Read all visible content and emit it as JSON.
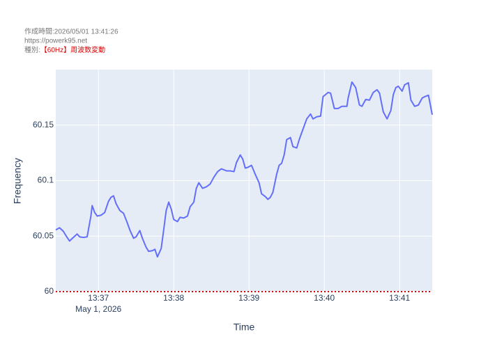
{
  "chart_data": {
    "type": "line",
    "header": [
      "作成時間:2026/05/01 13:41:26",
      "https://powerk95.net"
    ],
    "kind_label": "種別:",
    "kind": "【60Hz】周波数変動",
    "kind_color": "#e00000",
    "x_label": "Time",
    "y_label": "Frequency",
    "x_date_label": "May 1, 2026",
    "x": [
      "2026-05-01T13:36:26",
      "2026-05-01T13:36:29",
      "2026-05-01T13:36:32",
      "2026-05-01T13:36:34",
      "2026-05-01T13:36:37",
      "2026-05-01T13:36:40",
      "2026-05-01T13:36:43",
      "2026-05-01T13:36:45",
      "2026-05-01T13:36:48",
      "2026-05-01T13:36:51",
      "2026-05-01T13:36:54",
      "2026-05-01T13:36:55",
      "2026-05-01T13:36:57",
      "2026-05-01T13:36:59",
      "2026-05-01T13:37:02",
      "2026-05-01T13:37:05",
      "2026-05-01T13:37:08",
      "2026-05-01T13:37:10",
      "2026-05-01T13:37:12",
      "2026-05-01T13:37:14",
      "2026-05-01T13:37:17",
      "2026-05-01T13:37:20",
      "2026-05-01T13:37:23",
      "2026-05-01T13:37:25",
      "2026-05-01T13:37:28",
      "2026-05-01T13:37:30",
      "2026-05-01T13:37:33",
      "2026-05-01T13:37:35",
      "2026-05-01T13:37:38",
      "2026-05-01T13:37:40",
      "2026-05-01T13:37:43",
      "2026-05-01T13:37:45",
      "2026-05-01T13:37:47",
      "2026-05-01T13:37:50",
      "2026-05-01T13:37:52",
      "2026-05-01T13:37:54",
      "2026-05-01T13:37:56",
      "2026-05-01T13:37:58",
      "2026-05-01T13:38:00",
      "2026-05-01T13:38:03",
      "2026-05-01T13:38:05",
      "2026-05-01T13:38:08",
      "2026-05-01T13:38:11",
      "2026-05-01T13:38:13",
      "2026-05-01T13:38:16",
      "2026-05-01T13:38:18",
      "2026-05-01T13:38:20",
      "2026-05-01T13:38:23",
      "2026-05-01T13:38:26",
      "2026-05-01T13:38:29",
      "2026-05-01T13:38:32",
      "2026-05-01T13:38:35",
      "2026-05-01T13:38:38",
      "2026-05-01T13:38:42",
      "2026-05-01T13:38:45",
      "2026-05-01T13:38:48",
      "2026-05-01T13:38:50",
      "2026-05-01T13:38:53",
      "2026-05-01T13:38:55",
      "2026-05-01T13:38:57",
      "2026-05-01T13:38:59",
      "2026-05-01T13:39:02",
      "2026-05-01T13:39:05",
      "2026-05-01T13:39:08",
      "2026-05-01T13:39:10",
      "2026-05-01T13:39:13",
      "2026-05-01T13:39:15",
      "2026-05-01T13:39:17",
      "2026-05-01T13:39:19",
      "2026-05-01T13:39:22",
      "2026-05-01T13:39:24",
      "2026-05-01T13:39:26",
      "2026-05-01T13:39:28",
      "2026-05-01T13:39:30",
      "2026-05-01T13:39:33",
      "2026-05-01T13:39:35",
      "2026-05-01T13:39:38",
      "2026-05-01T13:39:40",
      "2026-05-01T13:39:43",
      "2026-05-01T13:39:46",
      "2026-05-01T13:39:49",
      "2026-05-01T13:39:51",
      "2026-05-01T13:39:54",
      "2026-05-01T13:39:57",
      "2026-05-01T13:39:59",
      "2026-05-01T13:40:03",
      "2026-05-01T13:40:05",
      "2026-05-01T13:40:08",
      "2026-05-01T13:40:11",
      "2026-05-01T13:40:14",
      "2026-05-01T13:40:18",
      "2026-05-01T13:40:19",
      "2026-05-01T13:40:22",
      "2026-05-01T13:40:25",
      "2026-05-01T13:40:28",
      "2026-05-01T13:40:30",
      "2026-05-01T13:40:33",
      "2026-05-01T13:40:36",
      "2026-05-01T13:40:39",
      "2026-05-01T13:40:42",
      "2026-05-01T13:40:44",
      "2026-05-01T13:40:47",
      "2026-05-01T13:40:50",
      "2026-05-01T13:40:53",
      "2026-05-01T13:40:55",
      "2026-05-01T13:40:57",
      "2026-05-01T13:40:59",
      "2026-05-01T13:41:02",
      "2026-05-01T13:41:04",
      "2026-05-01T13:41:07",
      "2026-05-01T13:41:09",
      "2026-05-01T13:41:12",
      "2026-05-01T13:41:15",
      "2026-05-01T13:41:18",
      "2026-05-01T13:41:20",
      "2026-05-01T13:41:23",
      "2026-05-01T13:41:26"
    ],
    "series": [
      {
        "name": "Frequency",
        "color": "#636efa",
        "values": [
          60.0556,
          60.0575,
          60.0544,
          60.0506,
          60.0456,
          60.0488,
          60.0519,
          60.0494,
          60.0488,
          60.0494,
          60.0681,
          60.0775,
          60.0713,
          60.0681,
          60.0688,
          60.0713,
          60.0813,
          60.085,
          60.0863,
          60.0794,
          60.0731,
          60.0706,
          60.0619,
          60.0556,
          60.0481,
          60.0494,
          60.055,
          60.0481,
          60.04,
          60.0363,
          60.0369,
          60.0381,
          60.0313,
          60.0388,
          60.0556,
          60.0731,
          60.0806,
          60.0744,
          60.065,
          60.0631,
          60.0669,
          60.0663,
          60.0681,
          60.0763,
          60.0806,
          60.0931,
          60.0981,
          60.0931,
          60.0944,
          60.0969,
          60.1031,
          60.1081,
          60.1106,
          60.1088,
          60.1088,
          60.1081,
          60.1163,
          60.1231,
          60.1194,
          60.1113,
          60.1119,
          60.1138,
          60.1056,
          60.0981,
          60.0881,
          60.0856,
          60.0831,
          60.085,
          60.0894,
          60.1056,
          60.1138,
          60.1156,
          60.1231,
          60.1369,
          60.1388,
          60.1306,
          60.1294,
          60.1369,
          60.1463,
          60.1556,
          60.16,
          60.1556,
          60.1575,
          60.1581,
          60.1756,
          60.1794,
          60.1788,
          60.165,
          60.165,
          60.1669,
          60.1669,
          60.1744,
          60.1888,
          60.1838,
          60.1681,
          60.1669,
          60.1731,
          60.1725,
          60.1794,
          60.1819,
          60.1788,
          60.1619,
          60.1556,
          60.1631,
          60.1775,
          60.1838,
          60.185,
          60.1806,
          60.1863,
          60.1881,
          60.1725,
          60.1669,
          60.1681,
          60.1744,
          60.1756,
          60.1769,
          60.1594
        ]
      }
    ],
    "xlim": [
      "2026-05-01T13:36:26",
      "2026-05-01T13:41:26"
    ],
    "xticks": [
      {
        "value": "2026-05-01T13:37:00",
        "label": "13:37"
      },
      {
        "value": "2026-05-01T13:38:00",
        "label": "13:38"
      },
      {
        "value": "2026-05-01T13:39:00",
        "label": "13:39"
      },
      {
        "value": "2026-05-01T13:40:00",
        "label": "13:40"
      },
      {
        "value": "2026-05-01T13:41:00",
        "label": "13:41"
      }
    ],
    "ylim": [
      60,
      60.2
    ],
    "yticks": [
      60,
      60.05,
      60.1,
      60.15
    ],
    "grid": true,
    "reference_line": {
      "value": 60,
      "color": "#e00000"
    }
  }
}
